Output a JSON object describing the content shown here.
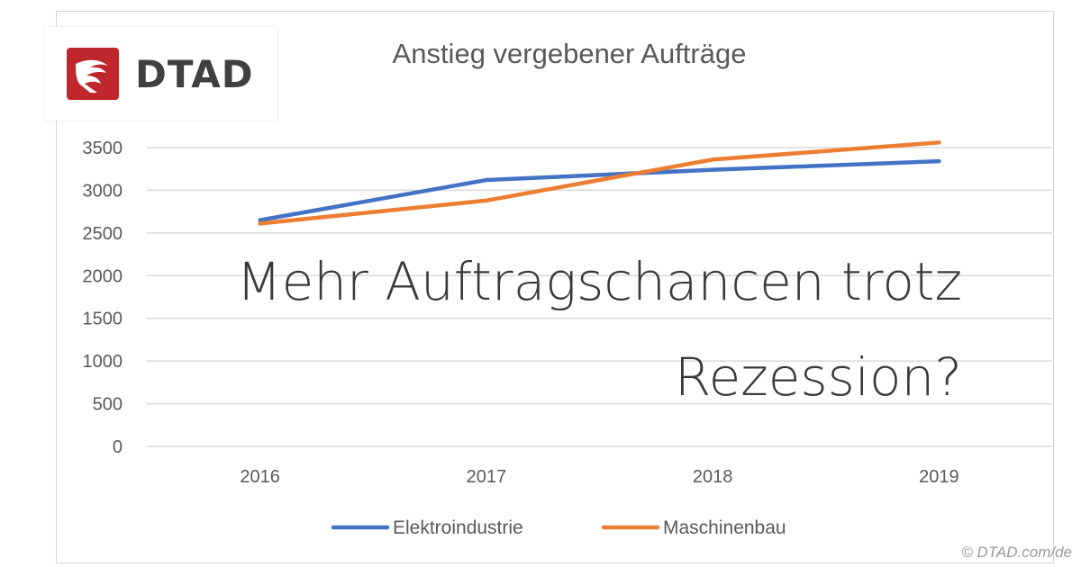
{
  "logo": {
    "text": "DTAD",
    "mark_color": "#c0272d"
  },
  "headline": {
    "line1": "Mehr Auftragschancen trotz",
    "line2": "Rezession?"
  },
  "copyright": "© DTAD.com/de",
  "chart_data": {
    "type": "line",
    "title": "Anstieg vergebener Aufträge",
    "categories": [
      "2016",
      "2017",
      "2018",
      "2019"
    ],
    "ylim": [
      0,
      3500
    ],
    "yticks": [
      0,
      500,
      1000,
      1500,
      2000,
      2500,
      3000,
      3500
    ],
    "grid": true,
    "legend_position": "bottom",
    "series": [
      {
        "name": "Elektroindustrie",
        "color": "#4472c4",
        "values": [
          2650,
          3120,
          3240,
          3340
        ]
      },
      {
        "name": "Maschinenbau",
        "color": "#ed7d31",
        "values": [
          2610,
          2880,
          3360,
          3560
        ]
      }
    ]
  }
}
